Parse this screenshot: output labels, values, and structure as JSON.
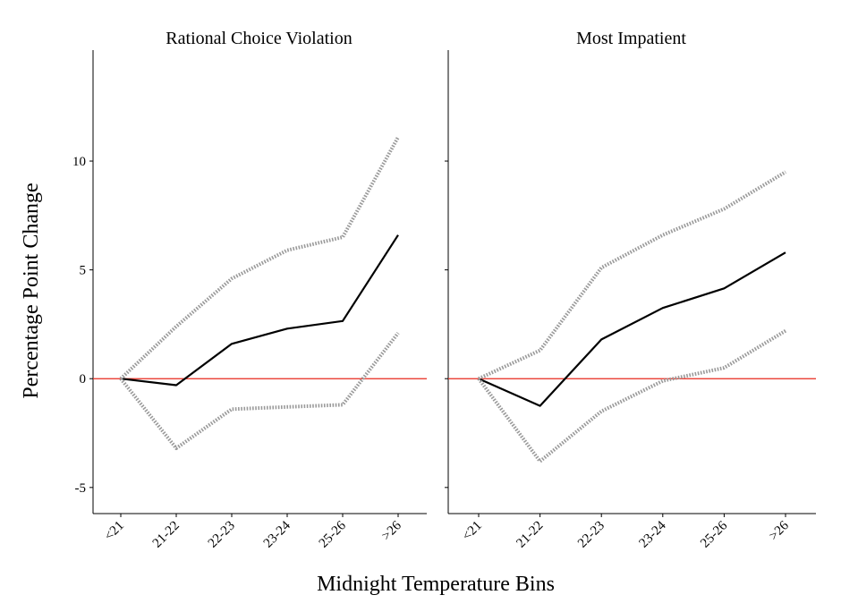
{
  "chart_data": {
    "type": "line",
    "ylabel": "Percentage Point Change",
    "xlabel": "Midnight Temperature Bins",
    "categories": [
      "<21",
      "21-22",
      "22-23",
      "23-24",
      "25-26",
      ">26"
    ],
    "ylim": [
      -6.2,
      15.1
    ],
    "yticks": [
      -5,
      0,
      5,
      10
    ],
    "yticks_labels": [
      "-5",
      "0",
      "5",
      "10"
    ],
    "reference_line": {
      "y": 0,
      "color": "#e8281c"
    },
    "grid": false,
    "colors": {
      "estimate": "#000000",
      "confidence_interval": "#9a9a9a"
    },
    "panels": [
      {
        "title": "Rational Choice Violation",
        "series": [
          {
            "role": "estimate",
            "style": "solid",
            "values": [
              0,
              -0.3,
              1.6,
              2.3,
              2.65,
              6.6
            ]
          },
          {
            "role": "upper_ci",
            "style": "dotted",
            "values": [
              0,
              2.4,
              4.6,
              5.9,
              6.5,
              11.1
            ]
          },
          {
            "role": "lower_ci",
            "style": "dotted",
            "values": [
              0,
              -3.2,
              -1.4,
              -1.3,
              -1.2,
              2.1
            ]
          }
        ]
      },
      {
        "title": "Most Impatient",
        "series": [
          {
            "role": "estimate",
            "style": "solid",
            "values": [
              0,
              -1.25,
              1.8,
              3.25,
              4.15,
              5.8
            ]
          },
          {
            "role": "upper_ci",
            "style": "dotted",
            "values": [
              0,
              1.3,
              5.1,
              6.6,
              7.8,
              9.5
            ]
          },
          {
            "role": "lower_ci",
            "style": "dotted",
            "values": [
              0,
              -3.8,
              -1.5,
              -0.1,
              0.5,
              2.2
            ]
          }
        ]
      }
    ]
  }
}
